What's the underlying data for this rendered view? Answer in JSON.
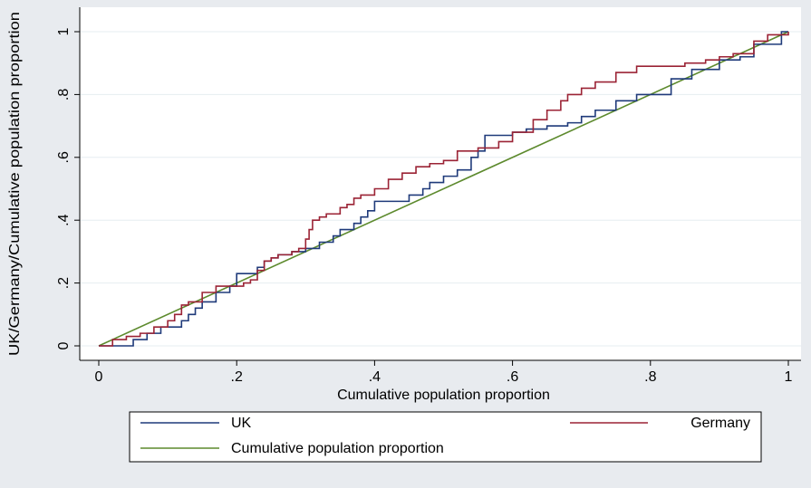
{
  "chart_data": {
    "type": "line",
    "title": "",
    "xlabel": "Cumulative population proportion",
    "ylabel": "UK/Germany/Cumulative population proportion",
    "xlim": [
      0,
      1
    ],
    "ylim": [
      0,
      1
    ],
    "x_ticks": [
      0,
      0.2,
      0.4,
      0.6,
      0.8,
      1
    ],
    "x_tick_labels": [
      "0",
      ".2",
      ".4",
      ".6",
      ".8",
      "1"
    ],
    "y_ticks": [
      0,
      0.2,
      0.4,
      0.6,
      0.8,
      1
    ],
    "y_tick_labels": [
      "0",
      ".2",
      ".4",
      ".6",
      ".8",
      "1"
    ],
    "grid": "horizontal",
    "legend_position": "bottom",
    "series": [
      {
        "name": "UK",
        "color": "#1f3a7a",
        "step": true,
        "x": [
          0,
          0.02,
          0.05,
          0.07,
          0.09,
          0.1,
          0.12,
          0.13,
          0.14,
          0.15,
          0.17,
          0.19,
          0.2,
          0.22,
          0.23,
          0.24,
          0.25,
          0.26,
          0.27,
          0.28,
          0.3,
          0.32,
          0.34,
          0.35,
          0.37,
          0.38,
          0.39,
          0.4,
          0.42,
          0.43,
          0.45,
          0.47,
          0.48,
          0.5,
          0.52,
          0.54,
          0.55,
          0.56,
          0.58,
          0.6,
          0.62,
          0.65,
          0.68,
          0.7,
          0.72,
          0.75,
          0.78,
          0.8,
          0.83,
          0.86,
          0.9,
          0.93,
          0.95,
          0.97,
          0.99,
          1
        ],
        "y": [
          0,
          0,
          0.02,
          0.04,
          0.06,
          0.06,
          0.08,
          0.1,
          0.12,
          0.14,
          0.17,
          0.19,
          0.23,
          0.23,
          0.25,
          0.27,
          0.28,
          0.29,
          0.29,
          0.3,
          0.31,
          0.33,
          0.35,
          0.37,
          0.39,
          0.41,
          0.43,
          0.46,
          0.46,
          0.46,
          0.48,
          0.5,
          0.52,
          0.54,
          0.56,
          0.6,
          0.62,
          0.67,
          0.67,
          0.68,
          0.69,
          0.7,
          0.71,
          0.73,
          0.75,
          0.78,
          0.8,
          0.8,
          0.85,
          0.88,
          0.91,
          0.92,
          0.96,
          0.96,
          1,
          1
        ]
      },
      {
        "name": "Germany",
        "color": "#9b2335",
        "step": true,
        "x": [
          0,
          0.02,
          0.04,
          0.06,
          0.08,
          0.1,
          0.11,
          0.12,
          0.13,
          0.15,
          0.17,
          0.2,
          0.21,
          0.22,
          0.23,
          0.24,
          0.25,
          0.26,
          0.28,
          0.29,
          0.3,
          0.305,
          0.31,
          0.32,
          0.33,
          0.35,
          0.36,
          0.37,
          0.38,
          0.4,
          0.42,
          0.44,
          0.46,
          0.48,
          0.5,
          0.52,
          0.55,
          0.58,
          0.6,
          0.62,
          0.63,
          0.65,
          0.67,
          0.68,
          0.7,
          0.72,
          0.75,
          0.78,
          0.8,
          0.82,
          0.85,
          0.88,
          0.9,
          0.92,
          0.95,
          0.97,
          1
        ],
        "y": [
          0,
          0.02,
          0.03,
          0.04,
          0.06,
          0.08,
          0.1,
          0.13,
          0.14,
          0.17,
          0.19,
          0.19,
          0.2,
          0.21,
          0.24,
          0.27,
          0.28,
          0.29,
          0.3,
          0.31,
          0.34,
          0.37,
          0.4,
          0.41,
          0.42,
          0.44,
          0.45,
          0.47,
          0.48,
          0.5,
          0.53,
          0.55,
          0.57,
          0.58,
          0.59,
          0.62,
          0.63,
          0.65,
          0.68,
          0.68,
          0.72,
          0.75,
          0.78,
          0.8,
          0.82,
          0.84,
          0.87,
          0.89,
          0.89,
          0.89,
          0.9,
          0.91,
          0.92,
          0.93,
          0.97,
          0.99,
          1
        ]
      },
      {
        "name": "Cumulative population proportion",
        "color": "#5d8a2d",
        "step": false,
        "x": [
          0,
          1
        ],
        "y": [
          0,
          1
        ]
      }
    ]
  }
}
